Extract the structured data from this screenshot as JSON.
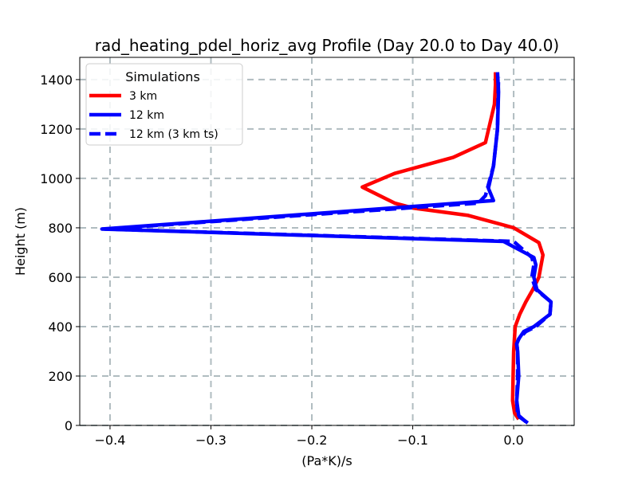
{
  "chart_data": {
    "type": "line",
    "title": "rad_heating_pdel_horiz_avg Profile (Day 20.0 to Day 40.0)",
    "xlabel": "(Pa*K)/s",
    "ylabel": "Height (m)",
    "xlim": [
      -0.43,
      0.06
    ],
    "ylim": [
      0,
      1490
    ],
    "xticks": [
      -0.4,
      -0.3,
      -0.2,
      -0.1,
      0.0
    ],
    "xtick_labels": [
      "−0.4",
      "−0.3",
      "−0.2",
      "−0.1",
      "0.0"
    ],
    "yticks": [
      0,
      200,
      400,
      600,
      800,
      1000,
      1200,
      1400
    ],
    "ytick_labels": [
      "0",
      "200",
      "400",
      "600",
      "800",
      "1000",
      "1200",
      "1400"
    ],
    "grid": true,
    "legend": {
      "title": "Simulations",
      "position": "top-left",
      "entries": [
        "3 km",
        "12 km",
        "12 km (3 km ts)"
      ]
    },
    "series": [
      {
        "name": "3 km",
        "color": "#ff0000",
        "style": "solid",
        "x": [
          0.005,
          0.001,
          -0.001,
          -0.0005,
          0.0,
          0.0015,
          0.006,
          0.012,
          0.019,
          0.025,
          0.029,
          0.025,
          0.0,
          -0.045,
          -0.1,
          -0.118,
          -0.15,
          -0.118,
          -0.06,
          -0.028,
          -0.019,
          -0.018,
          -0.018
        ],
        "y": [
          25,
          50,
          100,
          200,
          300,
          400,
          450,
          500,
          550,
          600,
          690,
          740,
          800,
          850,
          880,
          900,
          965,
          1020,
          1085,
          1145,
          1300,
          1380,
          1430
        ]
      },
      {
        "name": "12 km",
        "color": "#0000ff",
        "style": "solid",
        "x": [
          0.012,
          0.005,
          0.003,
          0.005,
          0.004,
          0.003,
          0.005,
          0.01,
          0.02,
          0.036,
          0.037,
          0.023,
          0.02,
          0.022,
          0.02,
          -0.01,
          -0.408,
          -0.02,
          -0.025,
          -0.02,
          -0.016,
          -0.015,
          -0.016
        ],
        "y": [
          15,
          40,
          100,
          200,
          300,
          330,
          350,
          380,
          400,
          450,
          500,
          550,
          600,
          650,
          680,
          745,
          795,
          910,
          960,
          1050,
          1200,
          1350,
          1430
        ]
      },
      {
        "name": "12 km (3 km ts)",
        "color": "#0000ff",
        "style": "dashed",
        "x": [
          0.014,
          0.004,
          0.003,
          0.004,
          0.004,
          0.003,
          0.005,
          0.012,
          0.022,
          0.036,
          0.037,
          0.022,
          0.018,
          0.02,
          0.018,
          0.0,
          -0.405,
          -0.035,
          -0.028,
          -0.02,
          -0.016,
          -0.015
        ],
        "y": [
          10,
          40,
          100,
          200,
          300,
          330,
          350,
          380,
          400,
          450,
          500,
          550,
          600,
          650,
          680,
          745,
          795,
          900,
          930,
          1050,
          1200,
          1410
        ]
      }
    ]
  }
}
